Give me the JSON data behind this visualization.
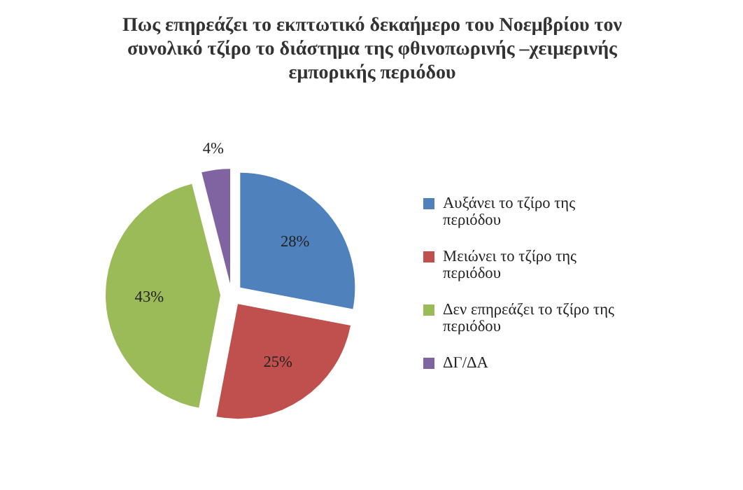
{
  "chart_data": {
    "type": "pie",
    "title": "Πως επηρεάζει το εκπτωτικό δεκαήμερο του Νοεμβρίου τον συνολικό τζίρο το διάστημα της φθινοπωρινής –χειμερινής εμπορικής περιόδου",
    "categories": [
      "Αυξάνει το τζίρο της περιόδου",
      "Μειώνει το τζίρο της περιόδου",
      "Δεν επηρεάζει το τζίρο της περιόδου",
      "ΔΓ/ΔΑ"
    ],
    "values": [
      28,
      25,
      43,
      4
    ],
    "value_labels": [
      "28%",
      "25%",
      "43%",
      "4%"
    ],
    "colors": [
      "#4f81bd",
      "#c0504d",
      "#9bbb59",
      "#8064a2"
    ],
    "legend": "right"
  }
}
